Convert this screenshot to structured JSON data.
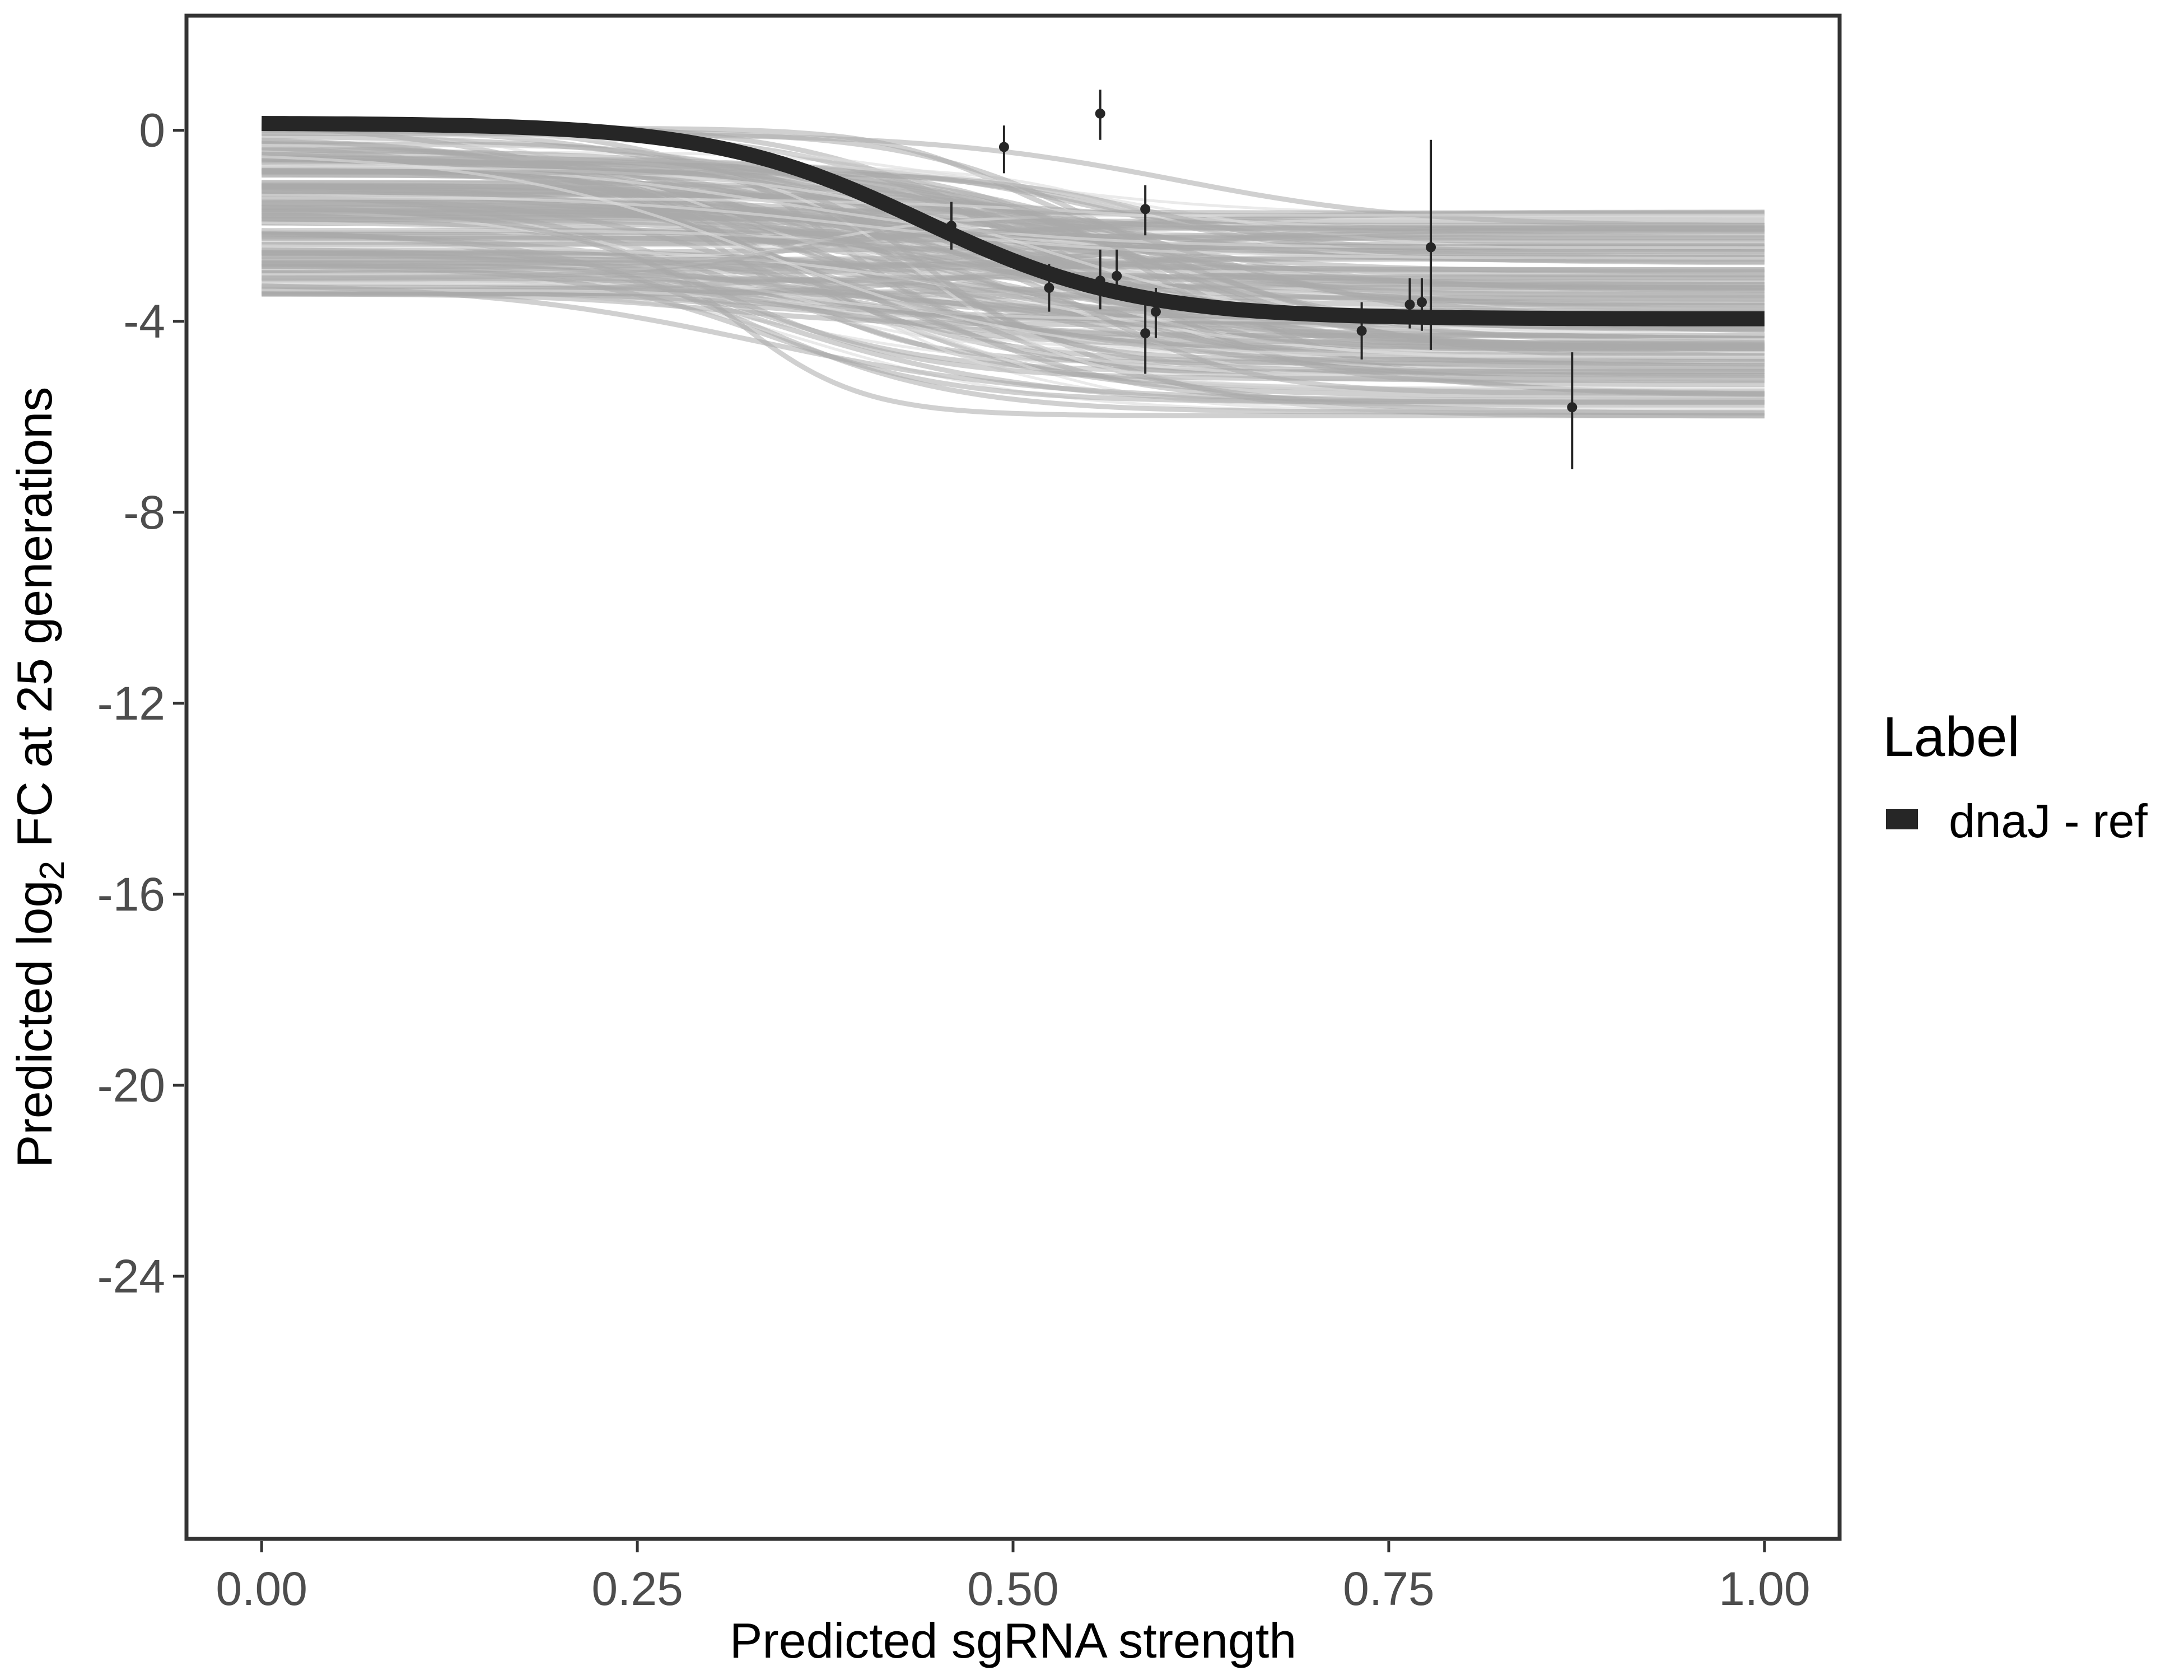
{
  "chart_data": {
    "type": "line",
    "xlabel": "Predicted sgRNA strength",
    "ylabel_prefix": "Predicted  log",
    "ylabel_subscript": "2",
    "ylabel_suffix": " FC at 25 generations",
    "xlim": [
      -0.05,
      1.05
    ],
    "ylim": [
      -29.5,
      2.4
    ],
    "x_ticks": [
      0.0,
      0.25,
      0.5,
      0.75,
      1.0
    ],
    "x_tick_labels": [
      "0.00",
      "0.25",
      "0.50",
      "0.75",
      "1.00"
    ],
    "y_ticks": [
      0,
      -4,
      -8,
      -12,
      -16,
      -20,
      -24
    ],
    "y_tick_labels": [
      "0",
      "-4",
      "-8",
      "-12",
      "-16",
      "-20",
      "-24"
    ],
    "grid": false,
    "legend": {
      "title": "Label",
      "position": "right",
      "entries": [
        {
          "name": "dnaJ - ref",
          "color": "#262626"
        }
      ]
    },
    "fit_curve": {
      "name": "dnaJ - ref",
      "color": "#262626",
      "shape": "logistic",
      "upper": 0.15,
      "lower": -3.95,
      "midpoint": 0.44,
      "scale": 0.07
    },
    "posterior_band": {
      "color": "#a9a9a9",
      "line_color": "#dcdcdc",
      "n_lines": 160,
      "upper_range": [
        -3.45,
        0.25
      ],
      "lower_range": [
        -6.0,
        -1.7
      ],
      "midpoint_range": [
        0.3,
        0.62
      ]
    },
    "points": [
      {
        "x": 0.459,
        "y": -2.0,
        "lo": -2.5,
        "hi": -1.5
      },
      {
        "x": 0.494,
        "y": -0.35,
        "lo": -0.9,
        "hi": 0.1
      },
      {
        "x": 0.524,
        "y": -3.3,
        "lo": -3.8,
        "hi": -2.8
      },
      {
        "x": 0.558,
        "y": 0.35,
        "lo": -0.2,
        "hi": 0.85
      },
      {
        "x": 0.558,
        "y": -3.15,
        "lo": -3.75,
        "hi": -2.5
      },
      {
        "x": 0.569,
        "y": -3.05,
        "lo": -3.55,
        "hi": -2.5
      },
      {
        "x": 0.588,
        "y": -1.65,
        "lo": -2.2,
        "hi": -1.15
      },
      {
        "x": 0.588,
        "y": -4.25,
        "lo": -5.1,
        "hi": -3.45
      },
      {
        "x": 0.595,
        "y": -3.8,
        "lo": -4.35,
        "hi": -3.3
      },
      {
        "x": 0.732,
        "y": -4.2,
        "lo": -4.8,
        "hi": -3.6
      },
      {
        "x": 0.764,
        "y": -3.65,
        "lo": -4.15,
        "hi": -3.1
      },
      {
        "x": 0.772,
        "y": -3.6,
        "lo": -4.2,
        "hi": -3.1
      },
      {
        "x": 0.778,
        "y": -2.45,
        "lo": -4.6,
        "hi": -0.2
      },
      {
        "x": 0.872,
        "y": -5.8,
        "lo": -7.1,
        "hi": -4.65
      }
    ]
  }
}
